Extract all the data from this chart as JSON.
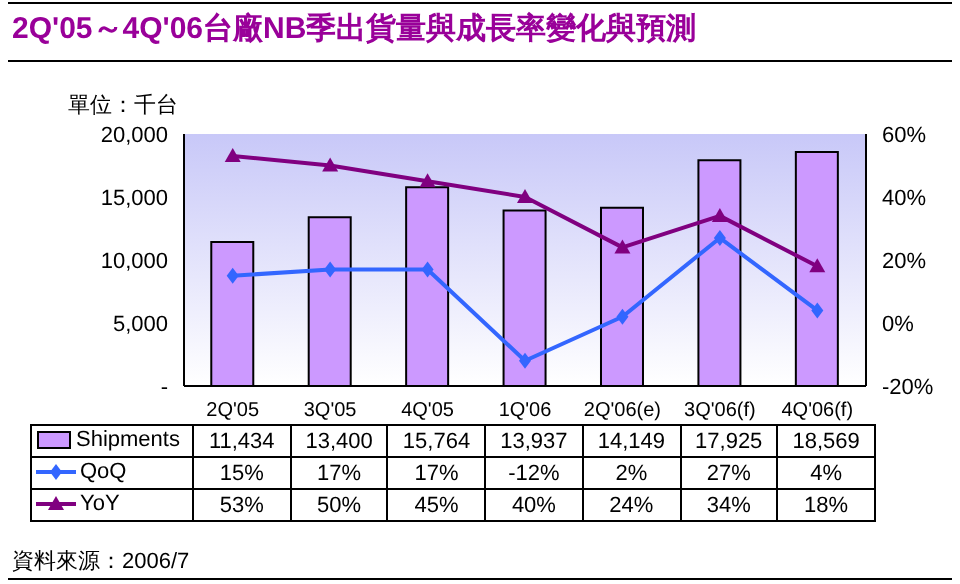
{
  "chart_data": {
    "type": "bar",
    "title": "2Q'05～4Q'06台廠NB季出貨量與成長率變化與預測",
    "ylabel": "單位：千台",
    "annotations": [
      "資料來源：2006/7"
    ],
    "categories": [
      "2Q'05",
      "3Q'05",
      "4Q'05",
      "1Q'06",
      "2Q'06(e)",
      "3Q'06(f)",
      "4Q'06(f)"
    ],
    "series": [
      {
        "name": "Shipments",
        "color": "#cc99ff",
        "values": [
          11434,
          13400,
          15764,
          13937,
          14149,
          17925,
          18569
        ],
        "value_labels": [
          "11,434",
          "13,400",
          "15,764",
          "13,937",
          "14,149",
          "17,925",
          "18,569"
        ]
      },
      {
        "name": "QoQ",
        "type": "line",
        "axis": "y2",
        "marker": "diamond",
        "color": "#3366ff",
        "values": [
          15,
          17,
          17,
          -12,
          2,
          27,
          4
        ],
        "value_labels": [
          "15%",
          "17%",
          "17%",
          "-12%",
          "2%",
          "27%",
          "4%"
        ]
      },
      {
        "name": "YoY",
        "type": "line",
        "axis": "y2",
        "marker": "triangle",
        "color": "#800080",
        "values": [
          53,
          50,
          45,
          40,
          24,
          34,
          18
        ],
        "value_labels": [
          "53%",
          "50%",
          "45%",
          "40%",
          "24%",
          "34%",
          "18%"
        ]
      }
    ],
    "ylim": [
      0,
      20000
    ],
    "yticks": [
      {
        "value": 0,
        "label": "-"
      },
      {
        "value": 5000,
        "label": "5,000"
      },
      {
        "value": 10000,
        "label": "10,000"
      },
      {
        "value": 15000,
        "label": "15,000"
      },
      {
        "value": 20000,
        "label": "20,000"
      }
    ],
    "y2lim": [
      -20,
      60
    ],
    "y2ticks": [
      {
        "value": -20,
        "label": "-20%"
      },
      {
        "value": 0,
        "label": "0%"
      },
      {
        "value": 20,
        "label": "20%"
      },
      {
        "value": 40,
        "label": "40%"
      },
      {
        "value": 60,
        "label": "60%"
      }
    ],
    "grid": false,
    "legend": "bottom"
  }
}
